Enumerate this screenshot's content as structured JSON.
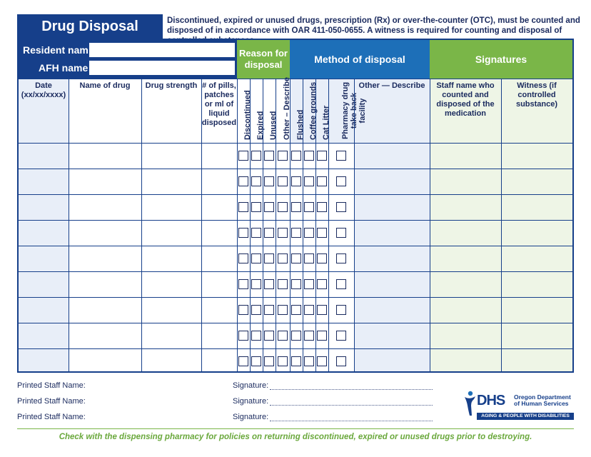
{
  "title": "Drug Disposal Record",
  "intro": "Discontinued, expired or unused drugs, prescription (Rx) or over-the-counter (OTC), must be counted and disposed of in accordance with OAR 411-050-0655. A witness is required for counting and disposal of controlled substances.",
  "resident_label": "Resident name:",
  "resident_value": "",
  "afh_label": "AFH name:",
  "afh_value": "",
  "group_headers": {
    "reason": "Reason for disposal",
    "method": "Method of disposal",
    "signatures": "Signatures"
  },
  "columns": {
    "date": "Date (xx/xx/xxxx)",
    "drug_name": "Name of drug",
    "strength": "Drug strength",
    "quantity": "# of pills, patches or ml of liquid disposed",
    "reason_options": [
      "Discontinued",
      "Expired",
      "Unused",
      "Other – Describe"
    ],
    "method_options": [
      "Flushed",
      "Coffee grounds",
      "Cat Litter",
      "Pharmacy drug take back facility"
    ],
    "other": "Other — Describe",
    "staff": "Staff name who counted and disposed of the medication",
    "witness": "Witness (if controlled substance)"
  },
  "row_count": 9,
  "footer": {
    "staff_label": "Printed Staff Name:",
    "signature_label": "Signature:",
    "lines": 3
  },
  "logo": {
    "letters": "DHS",
    "org": "Oregon Department of Human Services",
    "tagline": "AGING & PEOPLE WITH DISABILITIES"
  },
  "bottom_note": "Check with the dispensing pharmacy for policies on returning discontinued, expired or unused drugs prior to destroying.",
  "colors": {
    "navy": "#163f8a",
    "blue": "#1d6fb8",
    "green": "#7ab648",
    "row_light_blue": "#e8eef8",
    "row_light_green": "#eef5e6"
  }
}
